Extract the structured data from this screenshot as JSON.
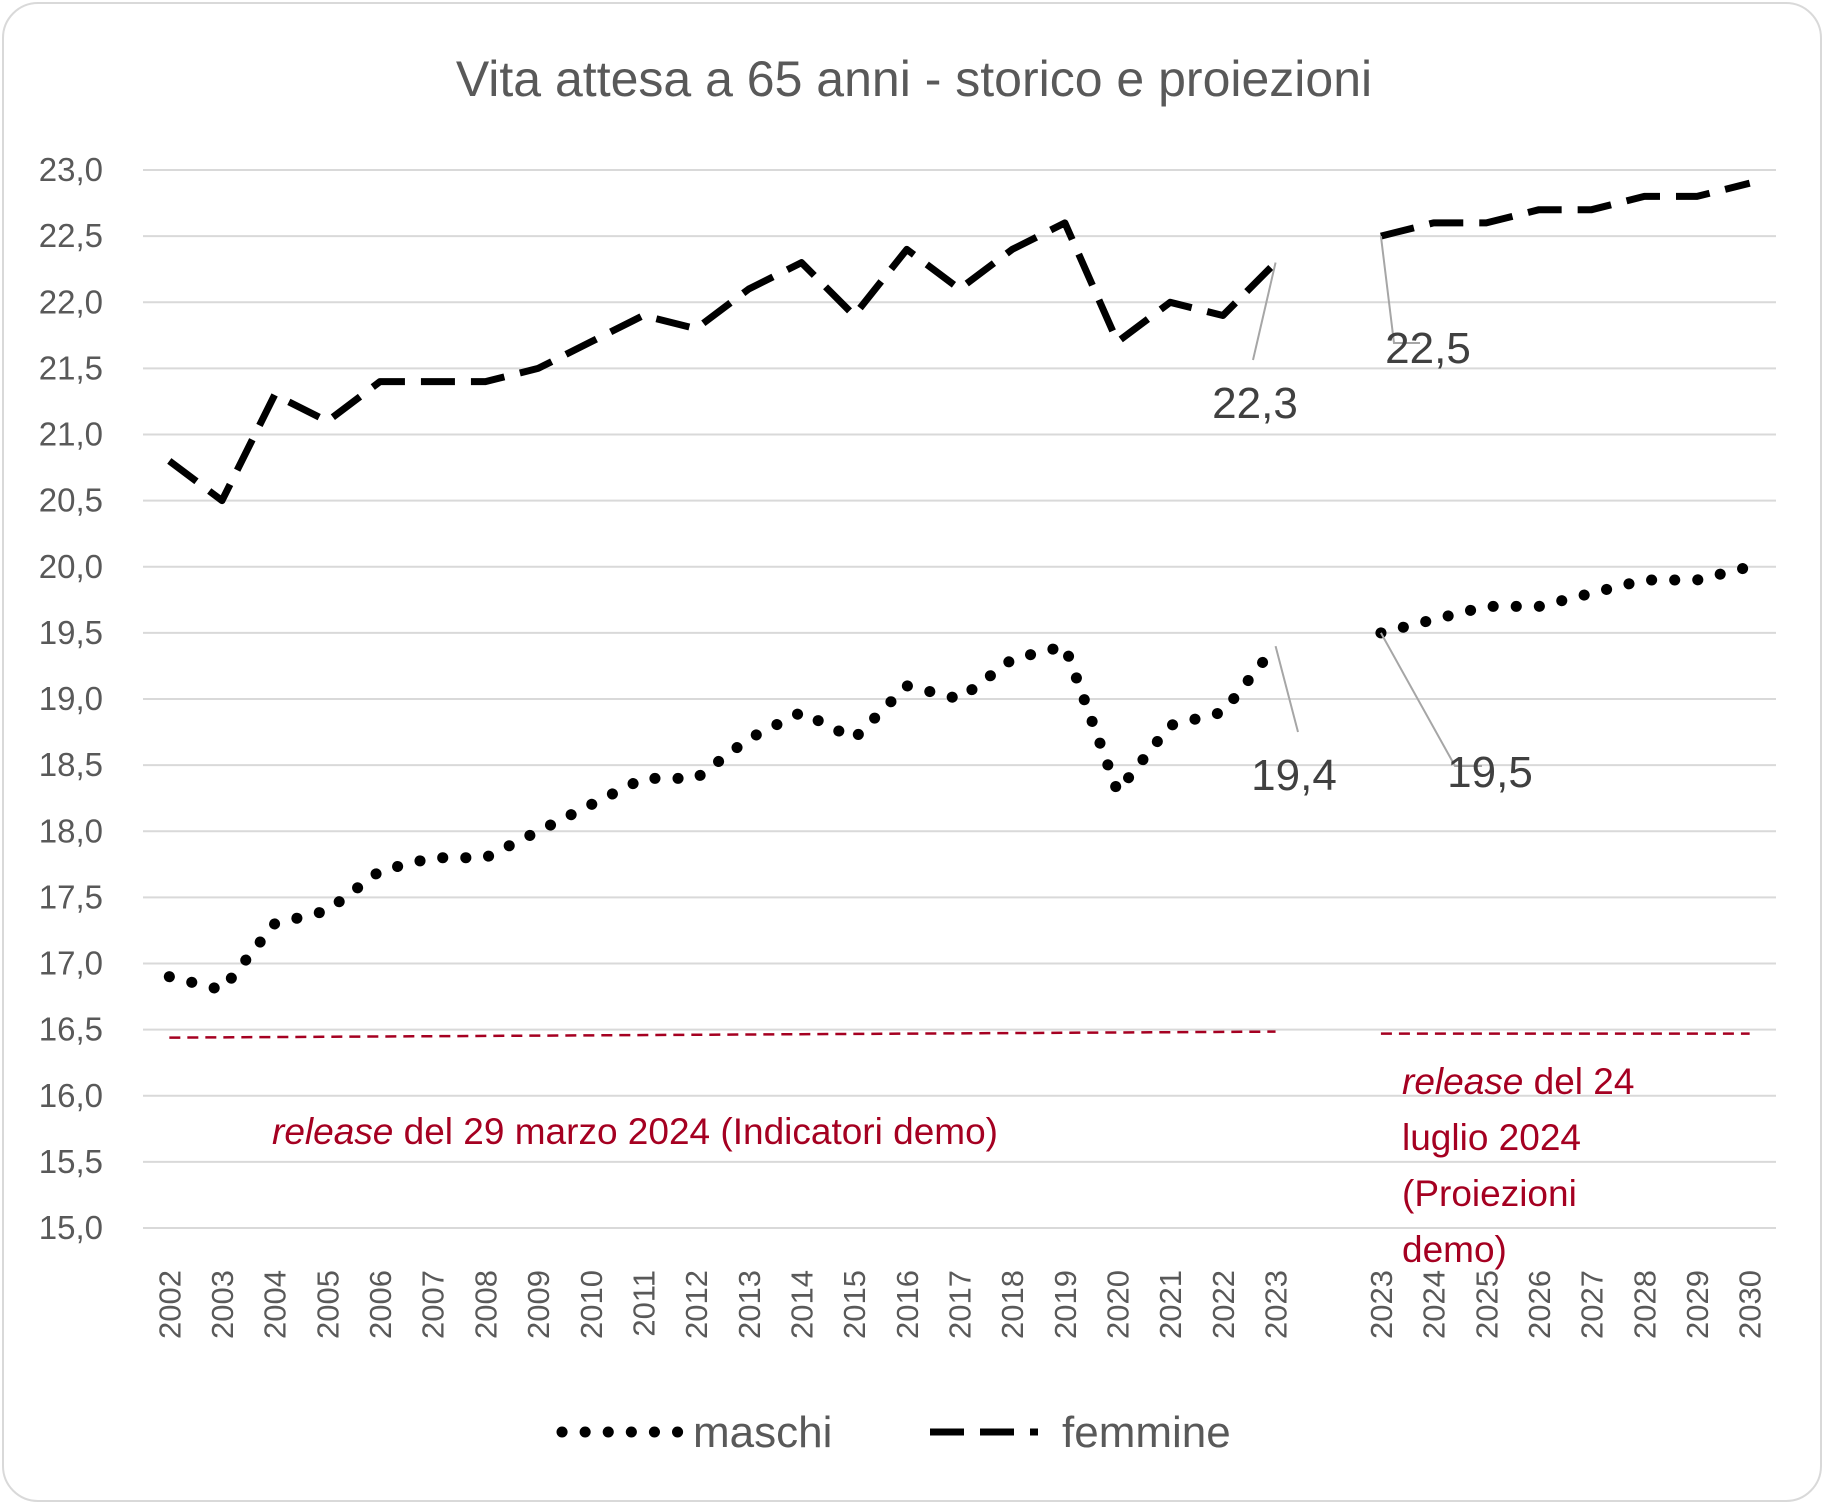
{
  "chart_data": {
    "type": "line",
    "title": "Vita attesa a 65 anni - storico e proiezioni",
    "xlabel": "",
    "ylabel": "",
    "ylim": [
      15.0,
      23.0
    ],
    "y_ticks": [
      "23,0",
      "22,5",
      "22,0",
      "21,5",
      "21,0",
      "20,5",
      "20,0",
      "19,5",
      "19,0",
      "18,5",
      "18,0",
      "17,5",
      "17,0",
      "16,5",
      "16,0",
      "15,5",
      "15,0"
    ],
    "grid": true,
    "legend_position": "bottom",
    "segments": [
      {
        "categories": [
          "2002",
          "2003",
          "2004",
          "2005",
          "2006",
          "2007",
          "2008",
          "2009",
          "2010",
          "2011",
          "2012",
          "2013",
          "2014",
          "2015",
          "2016",
          "2017",
          "2018",
          "2019",
          "2020",
          "2021",
          "2022",
          "2023"
        ],
        "note": {
          "italic": "release",
          "rest": " del 29 marzo 2024 (Indicatori demo)"
        },
        "reference_line_value": 16.5
      },
      {
        "categories": [
          "2023",
          "2024",
          "2025",
          "2026",
          "2027",
          "2028",
          "2029",
          "2030"
        ],
        "note": {
          "italic": "release",
          "rest_lines": [
            " del 24",
            "luglio 2024",
            "(Proiezioni",
            "demo)"
          ]
        },
        "reference_line_value": 16.5
      }
    ],
    "series": [
      {
        "name": "maschi",
        "style": "dotted",
        "color": "#000000",
        "segments": [
          [
            16.9,
            16.8,
            17.3,
            17.4,
            17.7,
            17.8,
            17.8,
            18.0,
            18.2,
            18.4,
            18.4,
            18.7,
            18.9,
            18.7,
            19.1,
            19.0,
            19.3,
            19.4,
            18.3,
            18.8,
            18.9,
            19.4
          ],
          [
            19.5,
            19.6,
            19.7,
            19.7,
            19.8,
            19.9,
            19.9,
            20.0
          ]
        ],
        "data_labels": [
          "19,4",
          "19,5"
        ]
      },
      {
        "name": "femmine",
        "style": "dashed",
        "color": "#000000",
        "segments": [
          [
            20.8,
            20.5,
            21.3,
            21.1,
            21.4,
            21.4,
            21.4,
            21.5,
            21.7,
            21.9,
            21.8,
            22.1,
            22.3,
            21.9,
            22.4,
            22.1,
            22.4,
            22.6,
            21.7,
            22.0,
            21.9,
            22.3
          ],
          [
            22.5,
            22.6,
            22.6,
            22.7,
            22.7,
            22.8,
            22.8,
            22.9
          ]
        ],
        "data_labels": [
          "22,3",
          "22,5"
        ]
      }
    ],
    "colors": {
      "note": "#a50021",
      "grid": "#d9d9d9",
      "text": "#595959"
    }
  }
}
